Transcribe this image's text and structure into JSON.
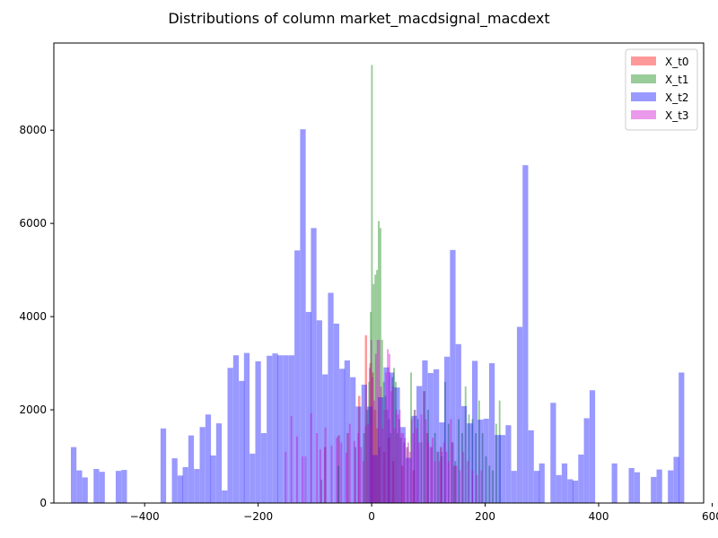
{
  "chart_data": {
    "type": "bar",
    "title": "Distributions of column market_macdsignal_macdext",
    "xlabel": "",
    "ylabel": "",
    "xlim": [
      -560,
      585
    ],
    "ylim": [
      0,
      9870
    ],
    "grid": false,
    "legend_placement": "top-right",
    "x_ticks": [
      -400,
      -200,
      0,
      200,
      400,
      600
    ],
    "y_ticks": [
      0,
      2000,
      4000,
      6000,
      8000
    ],
    "x_tick_labels": [
      "−400",
      "−200",
      "0",
      "200",
      "400",
      "600"
    ],
    "y_tick_labels": [
      "0",
      "2000",
      "4000",
      "6000",
      "8000"
    ],
    "series": [
      {
        "name": "X_t0",
        "color": "#ff0000",
        "opacity": 0.4,
        "bin_width": 4,
        "bins": [
          [
            -84,
            1200
          ],
          [
            -60,
            1450
          ],
          [
            -44,
            1500
          ],
          [
            -24,
            2300
          ],
          [
            -12,
            3600
          ],
          [
            -4,
            3000
          ],
          [
            0,
            2800
          ],
          [
            4,
            2000
          ],
          [
            8,
            1600
          ],
          [
            12,
            1200
          ],
          [
            20,
            1100
          ],
          [
            28,
            1400
          ],
          [
            36,
            900
          ],
          [
            52,
            800
          ],
          [
            72,
            700
          ],
          [
            96,
            1500
          ],
          [
            120,
            1200
          ],
          [
            144,
            800
          ]
        ]
      },
      {
        "name": "X_t1",
        "color": "#008000",
        "opacity": 0.4,
        "bin_width": 3,
        "bins": [
          [
            -90,
            500
          ],
          [
            -60,
            800
          ],
          [
            -30,
            1200
          ],
          [
            -15,
            1500
          ],
          [
            -9,
            2000
          ],
          [
            -6,
            2600
          ],
          [
            -3,
            4100
          ],
          [
            -1,
            9400
          ],
          [
            2,
            4700
          ],
          [
            5,
            4900
          ],
          [
            8,
            5000
          ],
          [
            11,
            6050
          ],
          [
            14,
            5900
          ],
          [
            17,
            3500
          ],
          [
            20,
            2600
          ],
          [
            23,
            2300
          ],
          [
            26,
            2000
          ],
          [
            29,
            1800
          ],
          [
            32,
            1500
          ],
          [
            35,
            2700
          ],
          [
            38,
            2900
          ],
          [
            41,
            2600
          ],
          [
            44,
            1500
          ],
          [
            47,
            1800
          ],
          [
            50,
            1400
          ],
          [
            56,
            1300
          ],
          [
            62,
            1200
          ],
          [
            68,
            2800
          ],
          [
            74,
            2000
          ],
          [
            80,
            1800
          ],
          [
            86,
            1300
          ],
          [
            92,
            2400
          ],
          [
            98,
            2000
          ],
          [
            104,
            1200
          ],
          [
            110,
            1500
          ],
          [
            116,
            1100
          ],
          [
            122,
            1000
          ],
          [
            128,
            2600
          ],
          [
            134,
            1700
          ],
          [
            140,
            1300
          ],
          [
            146,
            900
          ],
          [
            152,
            1800
          ],
          [
            158,
            1500
          ],
          [
            164,
            2500
          ],
          [
            170,
            1900
          ],
          [
            176,
            1800
          ],
          [
            182,
            1500
          ],
          [
            188,
            2200
          ],
          [
            194,
            1500
          ],
          [
            200,
            1000
          ],
          [
            206,
            800
          ],
          [
            212,
            700
          ],
          [
            218,
            1700
          ],
          [
            224,
            2200
          ]
        ]
      },
      {
        "name": "X_t2",
        "color": "#0000ff",
        "opacity": 0.4,
        "bin_width": 9.84,
        "bins": [
          [
            -530,
            1200
          ],
          [
            -520,
            700
          ],
          [
            -510,
            550
          ],
          [
            -490,
            730
          ],
          [
            -480,
            670
          ],
          [
            -451,
            690
          ],
          [
            -441,
            710
          ],
          [
            -372,
            1600
          ],
          [
            -352,
            960
          ],
          [
            -342,
            590
          ],
          [
            -333,
            770
          ],
          [
            -323,
            1450
          ],
          [
            -313,
            730
          ],
          [
            -303,
            1630
          ],
          [
            -293,
            1900
          ],
          [
            -284,
            1020
          ],
          [
            -274,
            1710
          ],
          [
            -264,
            270
          ],
          [
            -254,
            2900
          ],
          [
            -244,
            3170
          ],
          [
            -234,
            2620
          ],
          [
            -225,
            3220
          ],
          [
            -215,
            1060
          ],
          [
            -205,
            3040
          ],
          [
            -195,
            1500
          ],
          [
            -185,
            3160
          ],
          [
            -175,
            3210
          ],
          [
            -166,
            3170
          ],
          [
            -156,
            3170
          ],
          [
            -146,
            3170
          ],
          [
            -136,
            5420
          ],
          [
            -126,
            8020
          ],
          [
            -116,
            4100
          ],
          [
            -107,
            5900
          ],
          [
            -97,
            3920
          ],
          [
            -87,
            2760
          ],
          [
            -77,
            4510
          ],
          [
            -67,
            3850
          ],
          [
            -57,
            2880
          ],
          [
            -48,
            3060
          ],
          [
            -38,
            2700
          ],
          [
            -28,
            2070
          ],
          [
            -18,
            2540
          ],
          [
            -8,
            2070
          ],
          [
            1,
            1030
          ],
          [
            11,
            2270
          ],
          [
            21,
            2910
          ],
          [
            30,
            2800
          ],
          [
            40,
            2480
          ],
          [
            50,
            1630
          ],
          [
            60,
            970
          ],
          [
            70,
            1870
          ],
          [
            79,
            2510
          ],
          [
            89,
            3060
          ],
          [
            99,
            2790
          ],
          [
            109,
            2870
          ],
          [
            119,
            1730
          ],
          [
            128,
            3140
          ],
          [
            138,
            5430
          ],
          [
            148,
            3410
          ],
          [
            158,
            2080
          ],
          [
            168,
            1710
          ],
          [
            177,
            3050
          ],
          [
            187,
            1790
          ],
          [
            197,
            1810
          ],
          [
            207,
            3000
          ],
          [
            217,
            1460
          ],
          [
            226,
            1460
          ],
          [
            236,
            1670
          ],
          [
            246,
            690
          ],
          [
            256,
            3780
          ],
          [
            266,
            7250
          ],
          [
            276,
            1560
          ],
          [
            286,
            690
          ],
          [
            295,
            850
          ],
          [
            315,
            2150
          ],
          [
            325,
            600
          ],
          [
            335,
            850
          ],
          [
            345,
            510
          ],
          [
            354,
            480
          ],
          [
            364,
            1040
          ],
          [
            374,
            1820
          ],
          [
            384,
            2420
          ],
          [
            423,
            850
          ],
          [
            453,
            750
          ],
          [
            463,
            660
          ],
          [
            492,
            560
          ],
          [
            502,
            720
          ],
          [
            522,
            700
          ],
          [
            532,
            990
          ],
          [
            541,
            2800
          ]
        ]
      },
      {
        "name": "X_t3",
        "color": "#cc00cc",
        "opacity": 0.4,
        "bin_width": 3,
        "bins": [
          [
            -153,
            1100
          ],
          [
            -143,
            1870
          ],
          [
            -133,
            1430
          ],
          [
            -123,
            1000
          ],
          [
            -118,
            1000
          ],
          [
            -108,
            1930
          ],
          [
            -98,
            1500
          ],
          [
            -92,
            1150
          ],
          [
            -83,
            1620
          ],
          [
            -72,
            1230
          ],
          [
            -63,
            1400
          ],
          [
            -55,
            1300
          ],
          [
            -46,
            1080
          ],
          [
            -40,
            1700
          ],
          [
            -32,
            1330
          ],
          [
            -25,
            1500
          ],
          [
            -20,
            1200
          ],
          [
            -16,
            900
          ],
          [
            -12,
            1650
          ],
          [
            -8,
            1700
          ],
          [
            -5,
            2900
          ],
          [
            -2,
            3500
          ],
          [
            0,
            2700
          ],
          [
            3,
            2200
          ],
          [
            6,
            3200
          ],
          [
            9,
            3500
          ],
          [
            12,
            3500
          ],
          [
            15,
            2500
          ],
          [
            18,
            1600
          ],
          [
            21,
            2000
          ],
          [
            24,
            2800
          ],
          [
            27,
            3300
          ],
          [
            30,
            3200
          ],
          [
            33,
            2400
          ],
          [
            36,
            2500
          ],
          [
            39,
            1600
          ],
          [
            42,
            2000
          ],
          [
            45,
            1900
          ],
          [
            48,
            2000
          ],
          [
            51,
            1500
          ],
          [
            54,
            1500
          ],
          [
            57,
            1400
          ],
          [
            60,
            1200
          ],
          [
            63,
            1300
          ],
          [
            66,
            1100
          ],
          [
            69,
            1800
          ],
          [
            72,
            1500
          ],
          [
            75,
            2000
          ],
          [
            78,
            1600
          ],
          [
            82,
            1300
          ],
          [
            86,
            1900
          ],
          [
            90,
            2400
          ],
          [
            94,
            1800
          ],
          [
            98,
            1300
          ],
          [
            102,
            1200
          ],
          [
            106,
            1400
          ],
          [
            110,
            900
          ],
          [
            114,
            1100
          ],
          [
            118,
            900
          ],
          [
            122,
            1100
          ],
          [
            126,
            1300
          ],
          [
            130,
            1100
          ],
          [
            134,
            900
          ],
          [
            138,
            1800
          ],
          [
            142,
            1300
          ],
          [
            148,
            800
          ],
          [
            154,
            700
          ],
          [
            160,
            1100
          ],
          [
            168,
            900
          ],
          [
            176,
            700
          ],
          [
            184,
            600
          ],
          [
            192,
            700
          ]
        ]
      }
    ]
  }
}
